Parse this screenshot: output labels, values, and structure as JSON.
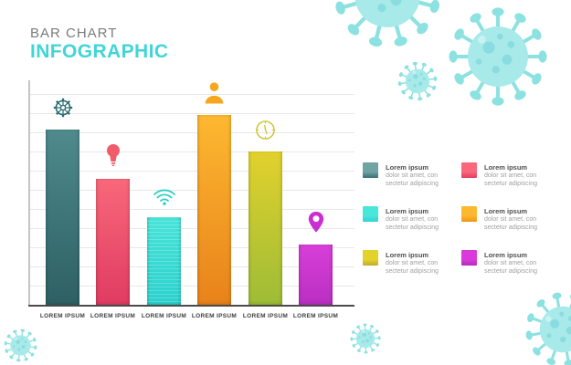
{
  "header": {
    "title_top": "BAR CHART",
    "title_main": "INFOGRAPHIC",
    "title_main_color": "#42d5d8"
  },
  "chart_data": {
    "type": "bar",
    "title": "BAR CHART INFOGRAPHIC",
    "categories": [
      "LOREM IPSUM",
      "LOREM IPSUM",
      "LOREM IPSUM",
      "LOREM IPSUM",
      "LOREM IPSUM",
      "LOREM IPSUM"
    ],
    "values": [
      83,
      60,
      42,
      90,
      73,
      29
    ],
    "ylim": [
      0,
      100
    ],
    "grid": true,
    "legend_position": "right",
    "bar_colors": [
      [
        "#4f8a8c",
        "#2d6063"
      ],
      [
        "#f8687a",
        "#e03b62"
      ],
      [
        "#47e4d8",
        "#2bd0cd"
      ],
      [
        "#fdb830",
        "#e8821b"
      ],
      [
        "#e2d12d",
        "#9dbc36"
      ],
      [
        "#d83fd8",
        "#b92fc2"
      ]
    ],
    "icons": [
      "gear",
      "lightbulb",
      "wifi",
      "person",
      "clock",
      "location-pin"
    ],
    "icon_colors": [
      "#2e6e71",
      "#f25b69",
      "#2ecfc5",
      "#f6a71f",
      "#cfc12c",
      "#ca2fd1"
    ]
  },
  "legend": {
    "items": [
      {
        "title": "Lorem ipsum",
        "line1": "dolor sit amet, con",
        "line2": "sectetur adipiscing",
        "colors": [
          "#6fa3a4",
          "#3a6d70"
        ]
      },
      {
        "title": "Lorem ipsum",
        "line1": "dolor sit amet, con",
        "line2": "sectetur adipiscing",
        "colors": [
          "#f8687a",
          "#e03b62"
        ]
      },
      {
        "title": "Lorem ipsum",
        "line1": "dolor sit amet, con",
        "line2": "sectetur adipiscing",
        "colors": [
          "#49e6da",
          "#2fd2cf"
        ]
      },
      {
        "title": "Lorem ipsum",
        "line1": "dolor sit amet, con",
        "line2": "sectetur adipiscing",
        "colors": [
          "#fdb830",
          "#ef9414"
        ]
      },
      {
        "title": "Lorem ipsum",
        "line1": "dolor sit amet, con",
        "line2": "sectetur adipiscing",
        "colors": [
          "#e3d22b",
          "#c3ab28"
        ]
      },
      {
        "title": "Lorem ipsum",
        "line1": "dolor sit amet, con",
        "line2": "sectetur adipiscing",
        "colors": [
          "#da3ad9",
          "#b32cbd"
        ]
      }
    ]
  },
  "decor": {
    "virus_body": "#a7eae9",
    "virus_spike": "#8ce1e1",
    "virus_spot": "#8adce0",
    "virus_spot_light": "#c8f3f2"
  }
}
